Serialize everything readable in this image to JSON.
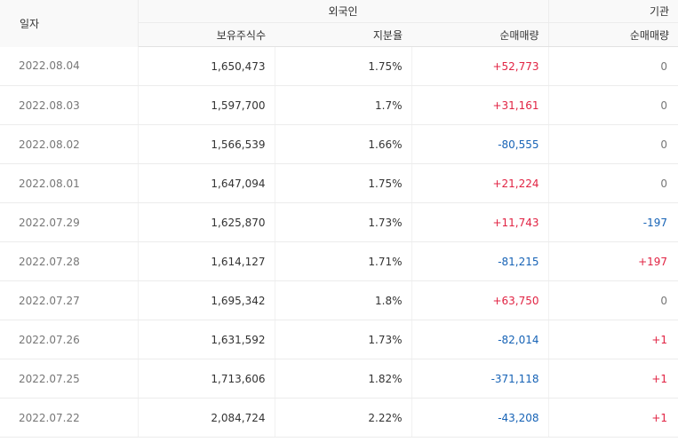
{
  "header": {
    "date_label": "일자",
    "foreign_group": "외국인",
    "institution_group": "기관",
    "holdings_label": "보유주식수",
    "ratio_label": "지분율",
    "foreign_net_label": "순매매량",
    "institution_net_label": "순매매량"
  },
  "colors": {
    "positive": "#e12343",
    "negative": "#1763b6",
    "neutral": "#777777"
  },
  "rows": [
    {
      "date": "2022.08.04",
      "holdings": "1,650,473",
      "ratio": "1.75%",
      "foreign_net": "+52,773",
      "institution_net": "0"
    },
    {
      "date": "2022.08.03",
      "holdings": "1,597,700",
      "ratio": "1.7%",
      "foreign_net": "+31,161",
      "institution_net": "0"
    },
    {
      "date": "2022.08.02",
      "holdings": "1,566,539",
      "ratio": "1.66%",
      "foreign_net": "-80,555",
      "institution_net": "0"
    },
    {
      "date": "2022.08.01",
      "holdings": "1,647,094",
      "ratio": "1.75%",
      "foreign_net": "+21,224",
      "institution_net": "0"
    },
    {
      "date": "2022.07.29",
      "holdings": "1,625,870",
      "ratio": "1.73%",
      "foreign_net": "+11,743",
      "institution_net": "-197"
    },
    {
      "date": "2022.07.28",
      "holdings": "1,614,127",
      "ratio": "1.71%",
      "foreign_net": "-81,215",
      "institution_net": "+197"
    },
    {
      "date": "2022.07.27",
      "holdings": "1,695,342",
      "ratio": "1.8%",
      "foreign_net": "+63,750",
      "institution_net": "0"
    },
    {
      "date": "2022.07.26",
      "holdings": "1,631,592",
      "ratio": "1.73%",
      "foreign_net": "-82,014",
      "institution_net": "+1"
    },
    {
      "date": "2022.07.25",
      "holdings": "1,713,606",
      "ratio": "1.82%",
      "foreign_net": "-371,118",
      "institution_net": "+1"
    },
    {
      "date": "2022.07.22",
      "holdings": "2,084,724",
      "ratio": "2.22%",
      "foreign_net": "-43,208",
      "institution_net": "+1"
    }
  ]
}
